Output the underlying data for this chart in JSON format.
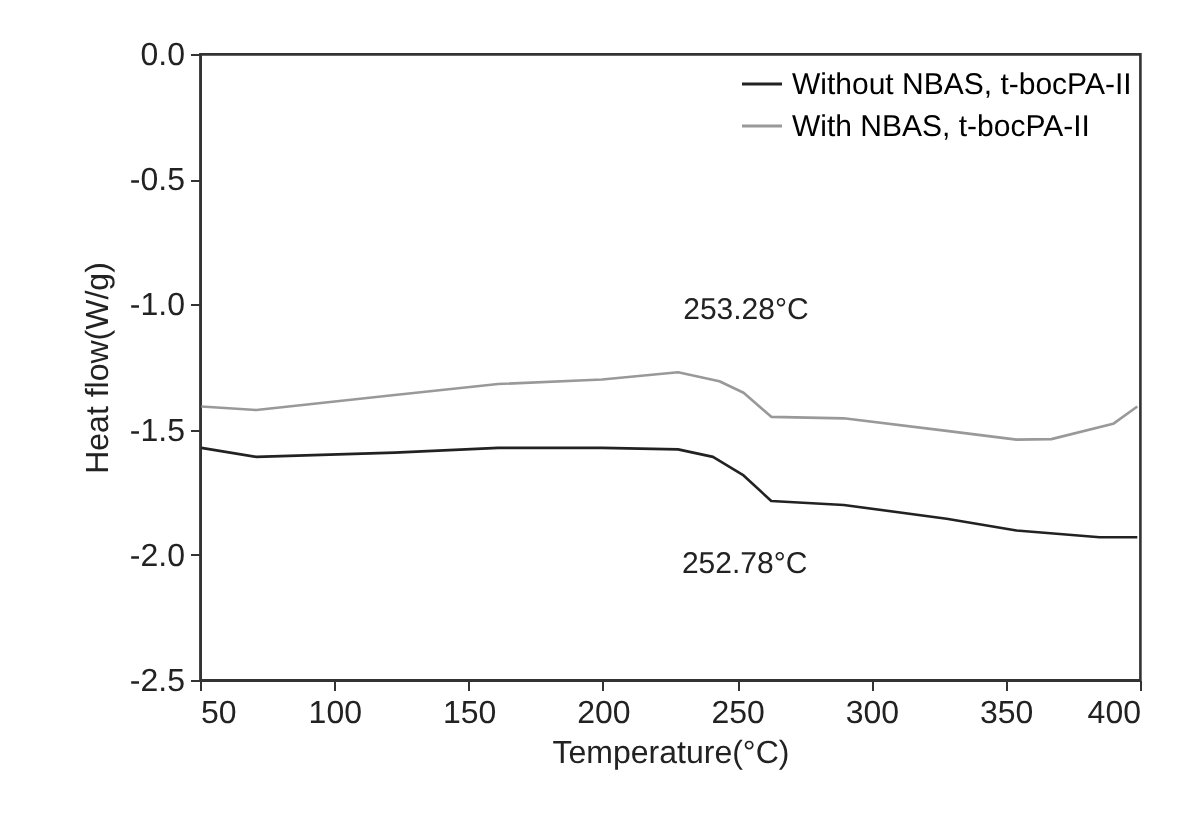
{
  "chart_data": {
    "type": "line",
    "xlabel": "Temperature(°C)",
    "ylabel": "Heat flow(W/g)",
    "xlim": [
      50,
      400
    ],
    "xticks": [
      50,
      100,
      150,
      200,
      250,
      300,
      350,
      400
    ],
    "ylim": [
      -2.5,
      0
    ],
    "yticks": [
      -2.5,
      {
        "value": -2,
        "label": "-2.0"
      },
      -1.5,
      {
        "value": -1,
        "label": "-1.0"
      },
      -0.5,
      {
        "value": 0,
        "label": "0.0"
      }
    ],
    "grid": false,
    "legend": "top right",
    "marker": "none",
    "line_style": "solid",
    "series": [
      {
        "name": "Without NBAS, t-bocPA-II",
        "color": "#222222",
        "x": [
          50.5,
          71,
          122.5,
          161,
          199.7,
          228,
          241,
          252.4,
          262.7,
          289.7,
          328,
          354,
          385,
          399
        ],
        "values": [
          -1.573,
          -1.609,
          -1.592,
          -1.573,
          -1.573,
          -1.579,
          -1.609,
          -1.683,
          -1.785,
          -1.801,
          -1.856,
          -1.903,
          -1.93,
          -1.93
        ]
      },
      {
        "name": "With NBAS, t-bocPA-II",
        "color": "#999999",
        "x": [
          50.5,
          71,
          122.5,
          161,
          199.7,
          228,
          243.4,
          252.4,
          262.7,
          289.7,
          328,
          354,
          367,
          390,
          399
        ],
        "values": [
          -1.408,
          -1.422,
          -1.362,
          -1.318,
          -1.3,
          -1.271,
          -1.307,
          -1.353,
          -1.449,
          -1.455,
          -1.505,
          -1.54,
          -1.538,
          -1.477,
          -1.408
        ]
      }
    ],
    "annotations": [
      {
        "text": "253.28°C",
        "x": 253.28,
        "y": -1.353
      },
      {
        "text": "252.78°C",
        "x": 252.78,
        "y": -1.683
      }
    ]
  }
}
